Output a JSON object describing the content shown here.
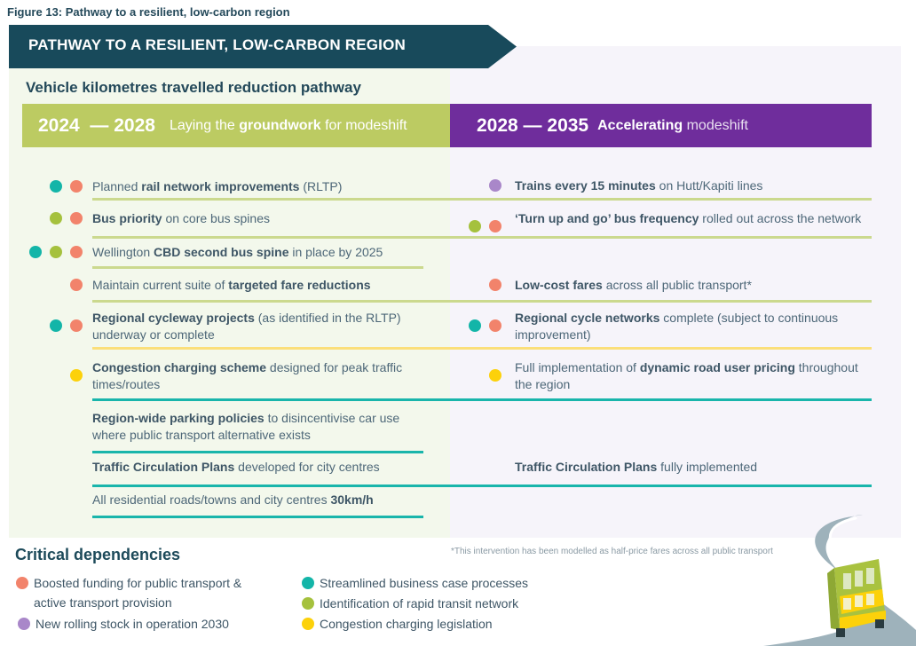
{
  "caption": "Figure 13: Pathway to a resilient, low-carbon region",
  "banner_title": "PATHWAY TO A RESILIENT, LOW-CARBON REGION",
  "subheading": "Vehicle kilometres travelled reduction pathway",
  "colors": {
    "teal": "#13b5a8",
    "salmon": "#f2836b",
    "green": "#a5c13d",
    "purple": "#a987c9",
    "yellow": "#fcd10a",
    "banner": "#184a5b",
    "phase1": "#bccb62",
    "phase2": "#6f2d9c"
  },
  "phases": [
    {
      "years": "2024  — 2028",
      "tag_pre": "Laying the ",
      "tag_bold": "groundwork",
      "tag_post": " for modeshift"
    },
    {
      "years": "2028 — 2035",
      "tag_pre": "",
      "tag_bold": "Accelerating",
      "tag_post": " modeshift"
    }
  ],
  "left_items": [
    {
      "dots": [
        "teal",
        "salmon"
      ],
      "segments": [
        [
          "Planned ",
          0
        ],
        [
          "rail network improvements",
          1
        ],
        [
          " (RLTP)",
          0
        ]
      ]
    },
    {
      "dots": [
        "green",
        "salmon"
      ],
      "segments": [
        [
          "Bus priority",
          1
        ],
        [
          " on core bus spines",
          0
        ]
      ]
    },
    {
      "dots": [
        "teal",
        "green",
        "salmon"
      ],
      "segments": [
        [
          "Wellington ",
          0
        ],
        [
          "CBD second bus spine",
          1
        ],
        [
          " in place by 2025",
          0
        ]
      ]
    },
    {
      "dots": [
        "salmon"
      ],
      "segments": [
        [
          "Maintain current suite of ",
          0
        ],
        [
          "targeted fare reductions",
          1
        ]
      ]
    },
    {
      "dots": [
        "teal",
        "salmon"
      ],
      "segments": [
        [
          "Regional cycleway projects",
          1
        ],
        [
          " (as identified in the RLTP) underway or complete",
          0
        ]
      ]
    },
    {
      "dots": [
        "yellow"
      ],
      "segments": [
        [
          "Congestion charging scheme",
          1
        ],
        [
          " designed for peak traffic times/routes",
          0
        ]
      ]
    },
    {
      "dots": [],
      "segments": [
        [
          "Region-wide parking policies",
          1
        ],
        [
          " to disincentivise car use where public transport alternative exists",
          0
        ]
      ]
    },
    {
      "dots": [],
      "segments": [
        [
          "Traffic Circulation Plans",
          1
        ],
        [
          " developed for city centres",
          0
        ]
      ]
    },
    {
      "dots": [],
      "segments": [
        [
          "All residential roads/towns and city centres ",
          0
        ],
        [
          "30km/h",
          1
        ]
      ]
    }
  ],
  "right_items": [
    {
      "dots": [
        "purple"
      ],
      "segments": [
        [
          "Trains every 15 minutes",
          1
        ],
        [
          " on Hutt/Kapiti lines",
          0
        ]
      ]
    },
    {
      "dots": [
        "green",
        "salmon"
      ],
      "segments": [
        [
          "‘Turn up and go’ bus frequency",
          1
        ],
        [
          " rolled out across the network",
          0
        ]
      ]
    },
    {
      "dots": [
        "salmon"
      ],
      "segments": [
        [
          "Low-cost fares",
          1
        ],
        [
          " across all public transport*",
          0
        ]
      ]
    },
    {
      "dots": [
        "teal",
        "salmon"
      ],
      "segments": [
        [
          "Regional cycle networks",
          1
        ],
        [
          " complete (subject to continuous improvement)",
          0
        ]
      ]
    },
    {
      "dots": [
        "yellow"
      ],
      "segments": [
        [
          "Full implementation of ",
          0
        ],
        [
          "dynamic road user pricing",
          1
        ],
        [
          " throughout the region",
          0
        ]
      ]
    },
    {
      "dots": [],
      "segments": [
        [
          "Traffic Circulation Plans",
          1
        ],
        [
          " fully implemented",
          0
        ]
      ]
    }
  ],
  "footnote": "*This intervention has been modelled as half-price fares across all public transport",
  "dependencies_title": "Critical dependencies",
  "dependencies": [
    {
      "color": "salmon",
      "label": "Boosted funding for public transport & active transport provision"
    },
    {
      "color": "purple",
      "label": "New rolling stock in operation 2030"
    },
    {
      "color": "teal",
      "label": "Streamlined business case processes"
    },
    {
      "color": "green",
      "label": "Identification of rapid transit network"
    },
    {
      "color": "yellow",
      "label": "Congestion charging legislation"
    }
  ]
}
